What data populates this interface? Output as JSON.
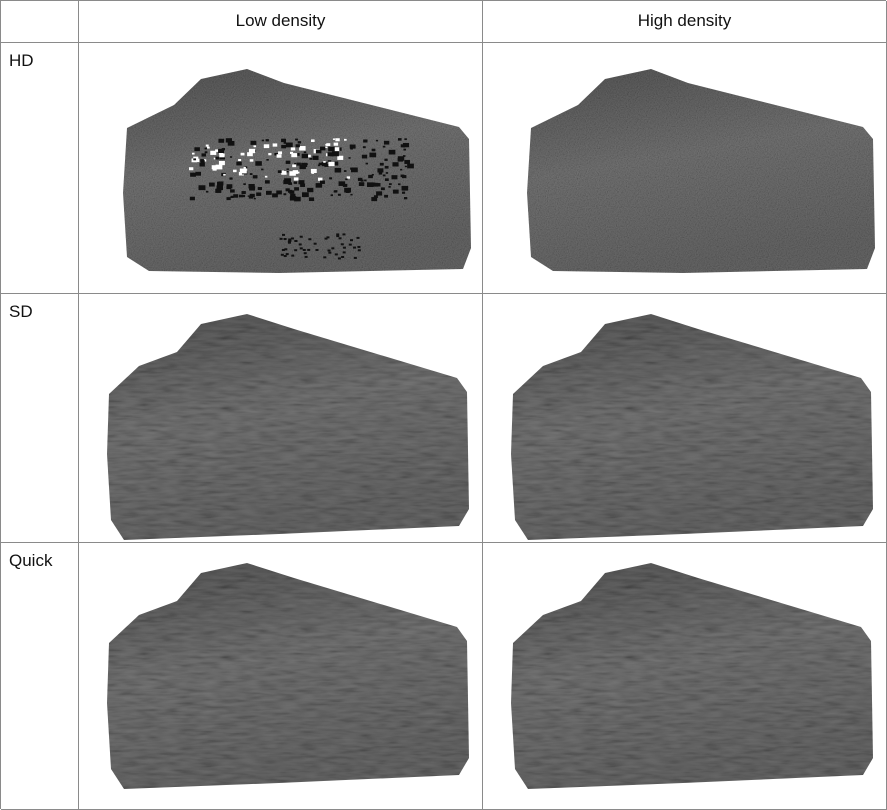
{
  "table": {
    "columns": [
      "Low density",
      "High density"
    ],
    "rows": [
      "HD",
      "SD",
      "Quick"
    ]
  }
}
